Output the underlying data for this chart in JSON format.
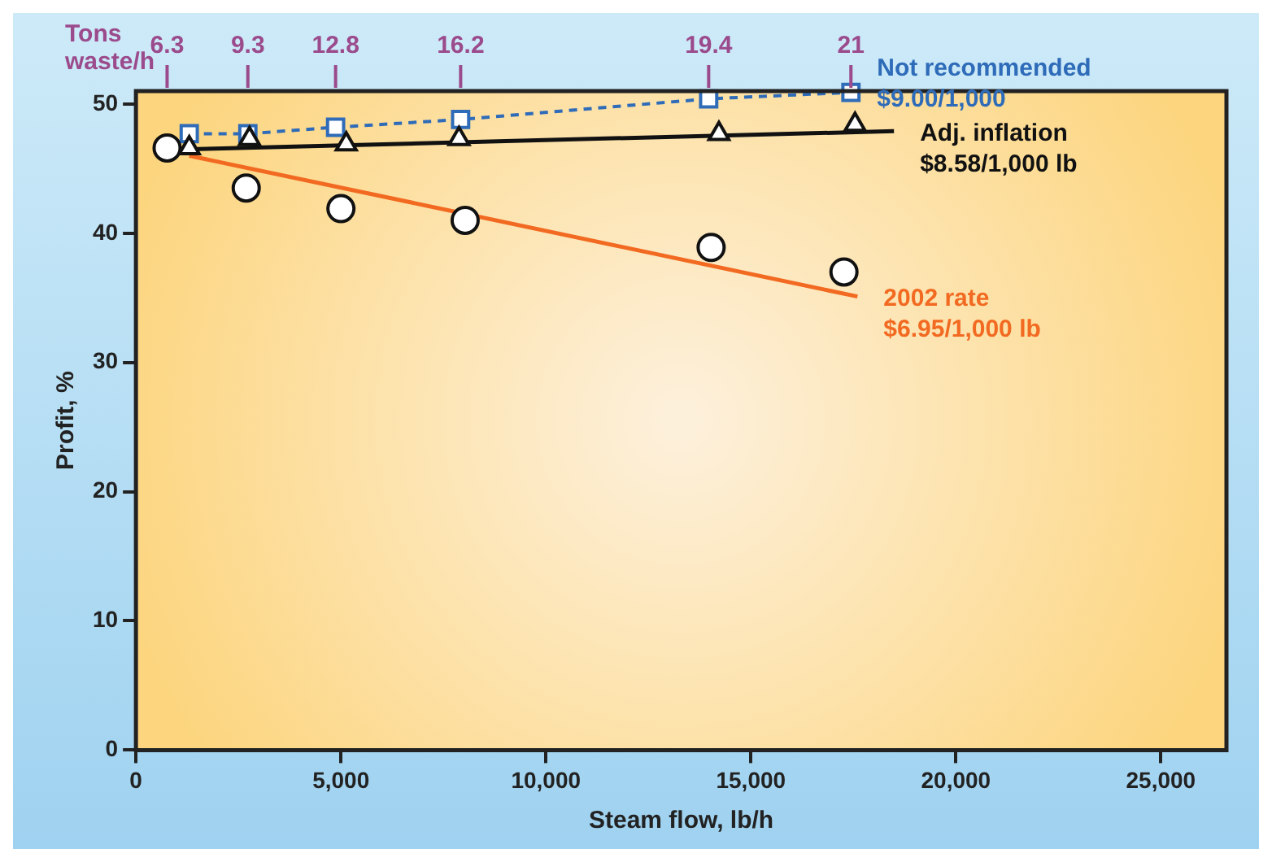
{
  "chart_data": {
    "type": "scatter",
    "xlabel": "Steam flow, lb/h",
    "ylabel": "Profit, %",
    "xlim": [
      0,
      26600
    ],
    "xticks": [
      {
        "value": 0,
        "label": "0"
      },
      {
        "value": 5000,
        "label": "5,000"
      },
      {
        "value": 10000,
        "label": "10,000"
      },
      {
        "value": 15000,
        "label": "15,000"
      },
      {
        "value": 20000,
        "label": "20,000"
      },
      {
        "value": 25000,
        "label": "25,000"
      }
    ],
    "ylim": [
      0,
      51
    ],
    "yticks": [
      0,
      10,
      20,
      30,
      40,
      50
    ],
    "annotations": [
      "Tons waste/h",
      {
        "text": "6.3",
        "x": 760
      },
      {
        "text": "9.3",
        "x": 2730
      },
      {
        "text": "12.8",
        "x": 4870
      },
      {
        "text": "16.2",
        "x": 7920
      },
      {
        "text": "19.4",
        "x": 13970
      },
      {
        "text": "21",
        "x": 17440
      }
    ],
    "grid": false,
    "legend": false,
    "series": [
      {
        "name": "Not recommended $9.00/1,000",
        "type": "line",
        "color": "#2e6bb8",
        "marker": "square",
        "line_style": "dashed",
        "x": [
          1300,
          2730,
          4870,
          7920,
          13970,
          17440
        ],
        "values": [
          47.7,
          47.7,
          48.2,
          48.8,
          50.4,
          50.9
        ]
      },
      {
        "color": "#111111",
        "marker": "triangle",
        "x": [
          1300,
          2770,
          5130,
          7880,
          14220,
          17540
        ],
        "values": [
          46.6,
          47.3,
          46.9,
          47.3,
          47.7,
          48.4
        ]
      },
      {
        "name": "Adj. inflation $8.58/1,000 lb",
        "type": "line",
        "color": "#111111",
        "marker": "none",
        "line_style": "solid",
        "x": [
          1300,
          18490
        ],
        "values": [
          46.5,
          47.9
        ]
      },
      {
        "color": "#111111",
        "marker": "circle",
        "x": [
          760,
          2690,
          5000,
          8030,
          14030,
          17270
        ],
        "values": [
          46.6,
          43.5,
          41.9,
          41.0,
          38.9,
          37.0
        ]
      },
      {
        "name": "2002 rate $6.95/1,000 lb",
        "type": "line",
        "color": "#f26a21",
        "marker": "none",
        "line_style": "solid",
        "x": [
          1300,
          17600
        ],
        "values": [
          46.0,
          35.1
        ]
      }
    ]
  }
}
